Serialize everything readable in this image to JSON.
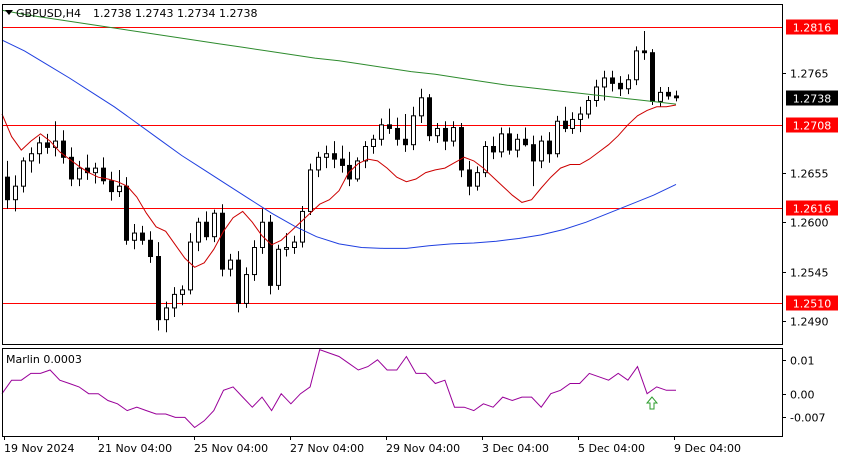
{
  "header": {
    "symbol_line": "GBPUSD,H4",
    "ohlc": "1.2738 1.2743 1.2734 1.2738"
  },
  "oscillator": {
    "label": "Marlin 0.0003",
    "ticks": [
      "0.01",
      "0.00",
      "-0.007"
    ]
  },
  "time_labels": [
    "19 Nov 2024",
    "21 Nov 04:00",
    "25 Nov 04:00",
    "27 Nov 04:00",
    "29 Nov 04:00",
    "3 Dec 04:00",
    "5 Dec 04:00",
    "9 Dec 04:00"
  ],
  "colors": {
    "level_line": "#ff0000",
    "ma_fast": "#cc0000",
    "ma_mid": "#2e8b2e",
    "ma_slow": "#1f3fe0",
    "oscillator_line": "#990099",
    "arrow": "#2e9d2e",
    "current_price_bg": "#000000"
  },
  "chart_data": {
    "type": "candlestick",
    "symbol": "GBPUSD",
    "timeframe": "H4",
    "ylim": [
      1.2465,
      1.2842
    ],
    "y_ticks": [
      "1.2490",
      "1.2545",
      "1.2600",
      "1.2655",
      "1.2765"
    ],
    "levels": [
      {
        "label": "1.2816",
        "value": 1.2816
      },
      {
        "label": "1.2708",
        "value": 1.2708
      },
      {
        "label": "1.2616",
        "value": 1.2616
      },
      {
        "label": "1.2510",
        "value": 1.251
      }
    ],
    "current_price": {
      "label": "1.2738",
      "value": 1.2738
    },
    "candles": [
      [
        1.265,
        1.2668,
        1.2615,
        1.2625
      ],
      [
        1.2625,
        1.2652,
        1.2612,
        1.264
      ],
      [
        1.264,
        1.2672,
        1.2633,
        1.2668
      ],
      [
        1.2668,
        1.2683,
        1.2655,
        1.2676
      ],
      [
        1.2676,
        1.2695,
        1.2665,
        1.2688
      ],
      [
        1.2688,
        1.2698,
        1.2676,
        1.2683
      ],
      [
        1.2683,
        1.2712,
        1.2673,
        1.269
      ],
      [
        1.269,
        1.2702,
        1.2665,
        1.2672
      ],
      [
        1.2672,
        1.2683,
        1.264,
        1.2648
      ],
      [
        1.2648,
        1.2668,
        1.264,
        1.266
      ],
      [
        1.266,
        1.2675,
        1.2647,
        1.2655
      ],
      [
        1.2655,
        1.2666,
        1.2643,
        1.266
      ],
      [
        1.266,
        1.2672,
        1.2642,
        1.2646
      ],
      [
        1.2646,
        1.2656,
        1.2624,
        1.2634
      ],
      [
        1.2634,
        1.2658,
        1.2628,
        1.264
      ],
      [
        1.264,
        1.265,
        1.2575,
        1.258
      ],
      [
        1.258,
        1.2598,
        1.257,
        1.2588
      ],
      [
        1.2588,
        1.2596,
        1.2575,
        1.258
      ],
      [
        1.258,
        1.259,
        1.2555,
        1.2562
      ],
      [
        1.2562,
        1.2578,
        1.248,
        1.2492
      ],
      [
        1.2492,
        1.2512,
        1.2478,
        1.2505
      ],
      [
        1.2505,
        1.2528,
        1.2495,
        1.252
      ],
      [
        1.252,
        1.253,
        1.2508,
        1.2525
      ],
      [
        1.2525,
        1.2588,
        1.252,
        1.2578
      ],
      [
        1.2578,
        1.2605,
        1.2568,
        1.26
      ],
      [
        1.26,
        1.2612,
        1.258,
        1.2584
      ],
      [
        1.2584,
        1.2614,
        1.2578,
        1.261
      ],
      [
        1.261,
        1.262,
        1.254,
        1.2548
      ],
      [
        1.2548,
        1.2565,
        1.254,
        1.2558
      ],
      [
        1.2558,
        1.2568,
        1.25,
        1.251
      ],
      [
        1.251,
        1.255,
        1.2505,
        1.2542
      ],
      [
        1.2542,
        1.258,
        1.2535,
        1.2572
      ],
      [
        1.2572,
        1.2615,
        1.2565,
        1.26
      ],
      [
        1.26,
        1.2608,
        1.252,
        1.253
      ],
      [
        1.253,
        1.2575,
        1.2525,
        1.257
      ],
      [
        1.257,
        1.2588,
        1.2562,
        1.2572
      ],
      [
        1.2572,
        1.2585,
        1.2565,
        1.2578
      ],
      [
        1.2578,
        1.2618,
        1.2572,
        1.2612
      ],
      [
        1.2612,
        1.2665,
        1.2608,
        1.2658
      ],
      [
        1.2658,
        1.2678,
        1.265,
        1.2672
      ],
      [
        1.2672,
        1.2685,
        1.266,
        1.2676
      ],
      [
        1.2676,
        1.269,
        1.266,
        1.267
      ],
      [
        1.267,
        1.2685,
        1.2655,
        1.2663
      ],
      [
        1.2663,
        1.2678,
        1.264,
        1.2648
      ],
      [
        1.2648,
        1.2672,
        1.2645,
        1.2668
      ],
      [
        1.2668,
        1.269,
        1.266,
        1.2684
      ],
      [
        1.2684,
        1.2697,
        1.2676,
        1.2692
      ],
      [
        1.2692,
        1.2715,
        1.2685,
        1.2708
      ],
      [
        1.2708,
        1.2726,
        1.2698,
        1.2704
      ],
      [
        1.2704,
        1.2716,
        1.2685,
        1.2692
      ],
      [
        1.2692,
        1.272,
        1.2678,
        1.2686
      ],
      [
        1.2686,
        1.2728,
        1.268,
        1.2718
      ],
      [
        1.2718,
        1.2748,
        1.271,
        1.2738
      ],
      [
        1.2738,
        1.2742,
        1.269,
        1.2696
      ],
      [
        1.2696,
        1.271,
        1.2688,
        1.2704
      ],
      [
        1.2704,
        1.2712,
        1.268,
        1.269
      ],
      [
        1.269,
        1.2712,
        1.2684,
        1.2705
      ],
      [
        1.2705,
        1.271,
        1.265,
        1.2658
      ],
      [
        1.2658,
        1.2668,
        1.263,
        1.264
      ],
      [
        1.264,
        1.2662,
        1.2635,
        1.2655
      ],
      [
        1.2655,
        1.269,
        1.265,
        1.2684
      ],
      [
        1.2684,
        1.2695,
        1.267,
        1.2678
      ],
      [
        1.2678,
        1.2705,
        1.2672,
        1.2698
      ],
      [
        1.2698,
        1.2705,
        1.2675,
        1.268
      ],
      [
        1.268,
        1.2698,
        1.2672,
        1.2692
      ],
      [
        1.2692,
        1.2705,
        1.2684,
        1.2686
      ],
      [
        1.2686,
        1.2696,
        1.264,
        1.2668
      ],
      [
        1.2668,
        1.2696,
        1.266,
        1.269
      ],
      [
        1.269,
        1.27,
        1.2666,
        1.2676
      ],
      [
        1.2676,
        1.2718,
        1.2672,
        1.2712
      ],
      [
        1.2712,
        1.2728,
        1.27,
        1.2704
      ],
      [
        1.2704,
        1.2722,
        1.2698,
        1.2714
      ],
      [
        1.2714,
        1.2728,
        1.27,
        1.272
      ],
      [
        1.272,
        1.274,
        1.2715,
        1.2735
      ],
      [
        1.2735,
        1.2758,
        1.2728,
        1.275
      ],
      [
        1.275,
        1.2768,
        1.2735,
        1.276
      ],
      [
        1.276,
        1.2768,
        1.2745,
        1.2754
      ],
      [
        1.2754,
        1.2762,
        1.274,
        1.2748
      ],
      [
        1.2748,
        1.2764,
        1.2742,
        1.2758
      ],
      [
        1.2758,
        1.2795,
        1.2752,
        1.279
      ],
      [
        1.279,
        1.2812,
        1.278,
        1.2788
      ],
      [
        1.2788,
        1.2792,
        1.273,
        1.2734
      ],
      [
        1.2734,
        1.275,
        1.2728,
        1.2744
      ],
      [
        1.2744,
        1.275,
        1.2736,
        1.274
      ],
      [
        1.274,
        1.2746,
        1.2734,
        1.2738
      ]
    ],
    "series": [
      {
        "role": "fast moving average",
        "values": [
          1.272,
          1.2695,
          1.268,
          1.269,
          1.2698,
          1.269,
          1.2678,
          1.267,
          1.2662,
          1.2655,
          1.265,
          1.2648,
          1.2645,
          1.264,
          1.2628,
          1.261,
          1.2595,
          1.259,
          1.2575,
          1.256,
          1.255,
          1.2555,
          1.257,
          1.259,
          1.2605,
          1.2612,
          1.26,
          1.2585,
          1.2575,
          1.258,
          1.259,
          1.26,
          1.261,
          1.262,
          1.2625,
          1.2635,
          1.2655,
          1.2665,
          1.267,
          1.2668,
          1.266,
          1.265,
          1.2645,
          1.2648,
          1.2655,
          1.2658,
          1.266,
          1.2666,
          1.2672,
          1.2668,
          1.266,
          1.265,
          1.264,
          1.263,
          1.2622,
          1.2625,
          1.2638,
          1.265,
          1.266,
          1.2664,
          1.2664,
          1.267,
          1.2678,
          1.2686,
          1.2696,
          1.2708,
          1.2718,
          1.2724,
          1.2728,
          1.2728,
          1.273
        ]
      },
      {
        "role": "medium moving average",
        "values": [
          1.2835,
          1.283,
          1.2826,
          1.2822,
          1.2818,
          1.2814,
          1.281,
          1.2806,
          1.2802,
          1.2798,
          1.2794,
          1.279,
          1.2786,
          1.2782,
          1.2779,
          1.2775,
          1.2771,
          1.2767,
          1.2764,
          1.276,
          1.2756,
          1.2752,
          1.2749,
          1.2746,
          1.2743,
          1.274,
          1.2737,
          1.2734,
          1.2731
        ]
      },
      {
        "role": "slow moving average",
        "values": [
          1.2802,
          1.279,
          1.2775,
          1.276,
          1.2744,
          1.2728,
          1.271,
          1.2692,
          1.2674,
          1.2658,
          1.2642,
          1.2626,
          1.261,
          1.2596,
          1.2584,
          1.2576,
          1.2572,
          1.2571,
          1.2571,
          1.2574,
          1.2576,
          1.2577,
          1.2579,
          1.2582,
          1.2586,
          1.2592,
          1.26,
          1.261,
          1.262,
          1.263,
          1.2642
        ]
      }
    ],
    "oscillator": {
      "name": "Marlin 0.0003",
      "ylim": [
        -0.0125,
        0.0135
      ],
      "values": [
        0.0,
        0.004,
        0.004,
        0.006,
        0.006,
        0.007,
        0.004,
        0.003,
        0.002,
        0.0,
        0.0,
        -0.002,
        -0.003,
        -0.005,
        -0.004,
        -0.005,
        -0.006,
        -0.006,
        -0.007,
        -0.007,
        -0.01,
        -0.008,
        -0.005,
        0.001,
        0.002,
        -0.001,
        -0.004,
        -0.001,
        -0.005,
        0.0,
        -0.003,
        0.0,
        0.002,
        0.013,
        0.012,
        0.011,
        0.009,
        0.007,
        0.008,
        0.01,
        0.007,
        0.007,
        0.011,
        0.006,
        0.006,
        0.003,
        0.004,
        -0.004,
        -0.004,
        -0.005,
        -0.003,
        -0.004,
        -0.001,
        -0.002,
        -0.001,
        -0.001,
        -0.004,
        0.0,
        0.001,
        0.003,
        0.003,
        0.006,
        0.005,
        0.004,
        0.006,
        0.004,
        0.008,
        0.0,
        0.002,
        0.001,
        0.001
      ]
    }
  }
}
